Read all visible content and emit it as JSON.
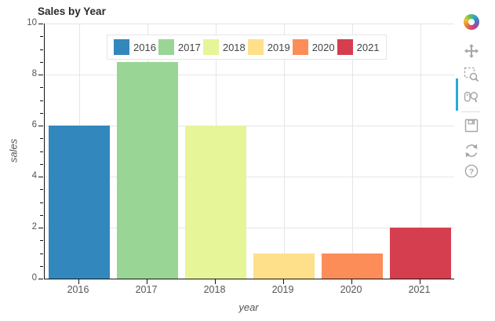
{
  "title": "Sales by Year",
  "chart_data": {
    "type": "bar",
    "title": "Sales by Year",
    "categories": [
      "2016",
      "2017",
      "2018",
      "2019",
      "2020",
      "2021"
    ],
    "values": [
      6,
      8.5,
      6,
      1,
      1,
      2
    ],
    "colors": [
      "#3288bd",
      "#99d594",
      "#e6f598",
      "#fee08b",
      "#fc8d59",
      "#d53e4f"
    ],
    "xlabel": "year",
    "ylabel": "sales",
    "ylim": [
      0,
      10
    ],
    "yticks": [
      0,
      2,
      4,
      6,
      8,
      10
    ],
    "grid": true,
    "legend": {
      "orientation": "horizontal",
      "position": "top",
      "entries": [
        "2016",
        "2017",
        "2018",
        "2019",
        "2020",
        "2021"
      ]
    }
  },
  "toolbar": {
    "logo": "Bokeh",
    "active_tool": "pan",
    "active_color": "#26aae1",
    "tools": [
      {
        "name": "pan"
      },
      {
        "name": "box-zoom"
      },
      {
        "name": "wheel-zoom"
      },
      {
        "name": "save"
      },
      {
        "name": "reset"
      },
      {
        "name": "help"
      }
    ]
  }
}
